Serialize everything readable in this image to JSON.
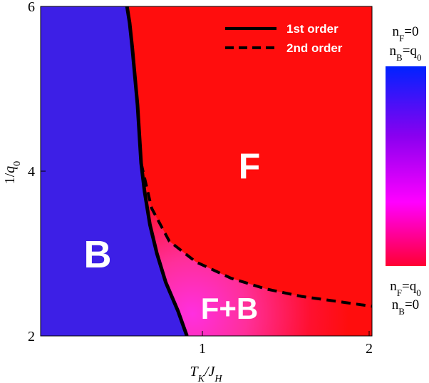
{
  "chart_data": {
    "type": "heatmap",
    "title": "",
    "xlabel": "T_K/J_H",
    "ylabel": "1/q_0",
    "xlim": [
      0.12,
      2.0
    ],
    "ylim": [
      2,
      6
    ],
    "x_ticks": [
      "1",
      "2"
    ],
    "y_ticks": [
      "2",
      "4",
      "6"
    ],
    "regions": [
      {
        "label": "B",
        "color": "#3d1fe6"
      },
      {
        "label": "F",
        "color": "#ff0d0d"
      },
      {
        "label": "F+B",
        "color": "#ff2fd6"
      }
    ],
    "legend": {
      "placement": "top-right",
      "entries": [
        {
          "label": "1st order",
          "style": "solid"
        },
        {
          "label": "2nd order",
          "style": "dashed"
        }
      ]
    },
    "series": [
      {
        "name": "1st order",
        "style": "solid",
        "x": [
          0.95,
          0.9,
          0.83,
          0.78,
          0.74,
          0.71,
          0.69,
          0.68,
          0.67,
          0.655,
          0.64,
          0.625,
          0.61
        ],
        "y": [
          2.0,
          2.3,
          2.65,
          3.0,
          3.35,
          3.75,
          4.1,
          4.45,
          4.8,
          5.15,
          5.5,
          5.8,
          6.0
        ]
      },
      {
        "name": "2nd order",
        "style": "dashed",
        "x": [
          0.69,
          0.75,
          0.85,
          1.0,
          1.2,
          1.4,
          1.6,
          1.8,
          2.0
        ],
        "y": [
          4.1,
          3.55,
          3.15,
          2.9,
          2.7,
          2.57,
          2.48,
          2.42,
          2.36
        ]
      }
    ],
    "colorbar": {
      "top_labels": [
        "n_F=0",
        "n_B=q_0"
      ],
      "bottom_labels": [
        "n_F=q_0",
        "n_B=0"
      ],
      "colors": [
        "#0022ff",
        "#8a00f0",
        "#ff00ff",
        "#ff0033"
      ]
    }
  }
}
